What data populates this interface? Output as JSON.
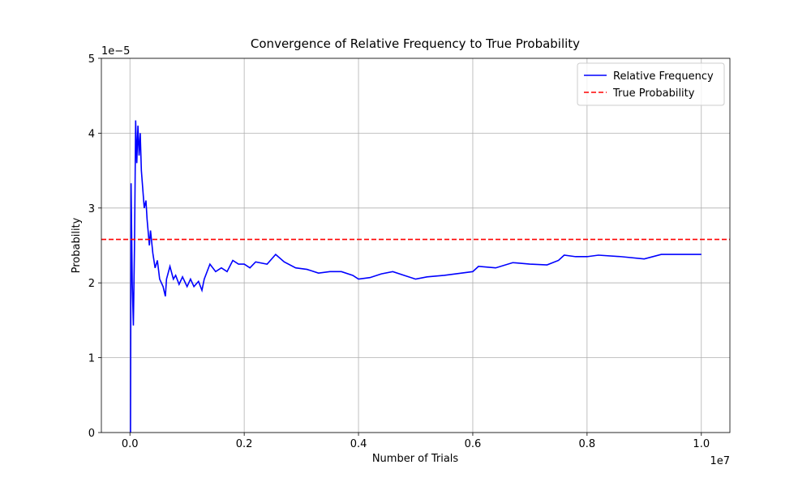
{
  "chart_data": {
    "type": "line",
    "title": "Convergence of Relative Frequency to True Probability",
    "x_label": "Number of Trials",
    "y_label": "Probability",
    "x_offset_label": "1e7",
    "y_offset_label": "1e−5",
    "x": [
      10000,
      20000,
      40000,
      60000,
      80000,
      100000,
      120000,
      140000,
      160000,
      180000,
      200000,
      250000,
      280000,
      300000,
      340000,
      360000,
      400000,
      440000,
      480000,
      520000,
      580000,
      620000,
      640000,
      700000,
      760000,
      800000,
      860000,
      920000,
      1000000,
      1060000,
      1120000,
      1200000,
      1260000,
      1300000,
      1400000,
      1500000,
      1600000,
      1700000,
      1800000,
      1900000,
      2000000,
      2100000,
      2200000,
      2400000,
      2550000,
      2700000,
      2900000,
      3100000,
      3300000,
      3500000,
      3700000,
      3900000,
      4000000,
      4200000,
      4400000,
      4600000,
      4800000,
      5000000,
      5200000,
      5500000,
      5800000,
      6000000,
      6100000,
      6400000,
      6700000,
      7000000,
      7300000,
      7500000,
      7600000,
      7800000,
      8000000,
      8200000,
      8600000,
      9000000,
      9300000,
      9700000,
      10000000
    ],
    "series": [
      {
        "name": "Relative Frequency",
        "color": "#0000ff",
        "values": [
          0,
          3.33e-05,
          2e-05,
          1.43e-05,
          2.5e-05,
          4.17e-05,
          3.6e-05,
          4.1e-05,
          3.7e-05,
          4e-05,
          3.5e-05,
          3e-05,
          3.1e-05,
          2.85e-05,
          2.5e-05,
          2.7e-05,
          2.4e-05,
          2.2e-05,
          2.3e-05,
          2.05e-05,
          1.95e-05,
          1.82e-05,
          2.05e-05,
          2.22e-05,
          2.05e-05,
          2.1e-05,
          1.98e-05,
          2.08e-05,
          1.95e-05,
          2.05e-05,
          1.95e-05,
          2.02e-05,
          1.9e-05,
          2.05e-05,
          2.25e-05,
          2.15e-05,
          2.2e-05,
          2.15e-05,
          2.3e-05,
          2.25e-05,
          2.25e-05,
          2.2e-05,
          2.28e-05,
          2.25e-05,
          2.38e-05,
          2.28e-05,
          2.2e-05,
          2.18e-05,
          2.13e-05,
          2.15e-05,
          2.15e-05,
          2.1e-05,
          2.05e-05,
          2.07e-05,
          2.12e-05,
          2.15e-05,
          2.1e-05,
          2.05e-05,
          2.08e-05,
          2.1e-05,
          2.13e-05,
          2.15e-05,
          2.22e-05,
          2.2e-05,
          2.27e-05,
          2.25e-05,
          2.24e-05,
          2.3e-05,
          2.37e-05,
          2.35e-05,
          2.35e-05,
          2.37e-05,
          2.35e-05,
          2.32e-05,
          2.38e-05,
          2.38e-05,
          2.38e-05
        ]
      }
    ],
    "reference_line": {
      "name": "True Probability",
      "color": "#ff0000",
      "value": 2.58e-05
    },
    "xlim": [
      -500000,
      10500000
    ],
    "ylim": [
      0,
      5e-05
    ],
    "xticks": [
      {
        "value": 0,
        "label": "0.0"
      },
      {
        "value": 2000000,
        "label": "0.2"
      },
      {
        "value": 4000000,
        "label": "0.4"
      },
      {
        "value": 6000000,
        "label": "0.6"
      },
      {
        "value": 8000000,
        "label": "0.8"
      },
      {
        "value": 10000000,
        "label": "1.0"
      }
    ],
    "yticks": [
      0,
      {
        "value": 1e-05,
        "label": "1"
      },
      {
        "value": 2e-05,
        "label": "2"
      },
      {
        "value": 3e-05,
        "label": "3"
      },
      {
        "value": 4e-05,
        "label": "4"
      },
      {
        "value": 5e-05,
        "label": "5"
      }
    ],
    "grid": true,
    "legend": "upper right"
  }
}
